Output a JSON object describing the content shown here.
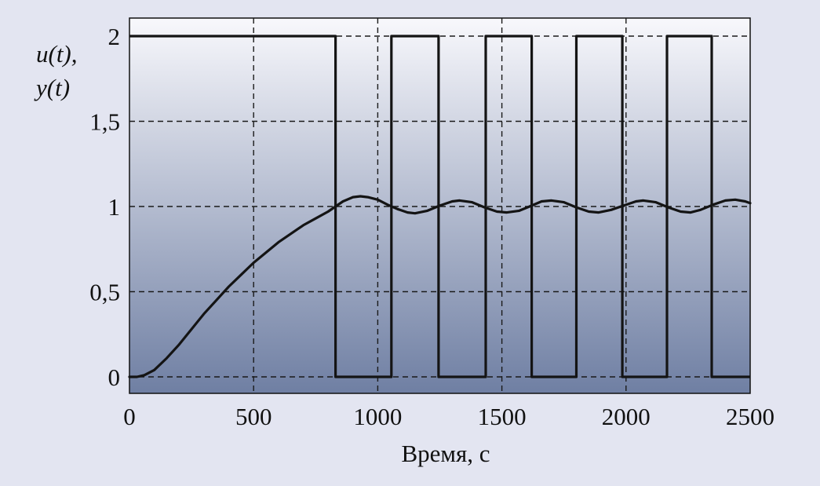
{
  "chart_data": {
    "type": "line",
    "title": "",
    "xlabel": "Время, с",
    "ylabel": {
      "line1": "u(t),",
      "line2": "y(t)"
    },
    "xlim": [
      0,
      2500
    ],
    "ylim": [
      0,
      2
    ],
    "xticks": [
      {
        "value": 0,
        "label": "0"
      },
      {
        "value": 500,
        "label": "500"
      },
      {
        "value": 1000,
        "label": "1000"
      },
      {
        "value": 1500,
        "label": "1500"
      },
      {
        "value": 2000,
        "label": "2000"
      },
      {
        "value": 2500,
        "label": "2500"
      }
    ],
    "yticks": [
      {
        "value": 0,
        "label": "0"
      },
      {
        "value": 0.5,
        "label": "0,5"
      },
      {
        "value": 1,
        "label": "1"
      },
      {
        "value": 1.5,
        "label": "1,5"
      },
      {
        "value": 2,
        "label": "2"
      }
    ],
    "grid": true,
    "colors": {
      "background": "#e3e5f1",
      "plot_top": "#f8f8fc",
      "plot_bottom": "#6f7fa3",
      "line": "#141414"
    },
    "series": [
      {
        "name": "u(t)",
        "x": [
          0,
          830,
          830,
          1055,
          1055,
          1245,
          1245,
          1435,
          1435,
          1620,
          1620,
          1800,
          1800,
          1985,
          1985,
          2165,
          2165,
          2345,
          2345,
          2500
        ],
        "y": [
          2,
          2,
          0,
          0,
          2,
          2,
          0,
          0,
          2,
          2,
          0,
          0,
          2,
          2,
          0,
          0,
          2,
          2,
          0,
          0
        ]
      },
      {
        "name": "y(t)",
        "x": [
          0,
          30,
          60,
          100,
          150,
          200,
          250,
          300,
          350,
          400,
          450,
          500,
          550,
          600,
          650,
          700,
          750,
          800,
          830,
          860,
          900,
          930,
          960,
          1000,
          1040,
          1080,
          1120,
          1150,
          1200,
          1250,
          1300,
          1330,
          1380,
          1430,
          1480,
          1520,
          1570,
          1620,
          1660,
          1700,
          1750,
          1800,
          1850,
          1890,
          1940,
          1990,
          2040,
          2070,
          2120,
          2170,
          2220,
          2260,
          2300,
          2350,
          2400,
          2440,
          2480,
          2500
        ],
        "y": [
          0,
          0,
          0.01,
          0.04,
          0.11,
          0.19,
          0.28,
          0.37,
          0.45,
          0.53,
          0.6,
          0.67,
          0.73,
          0.79,
          0.84,
          0.89,
          0.93,
          0.97,
          1.0,
          1.03,
          1.055,
          1.06,
          1.055,
          1.04,
          1.01,
          0.985,
          0.965,
          0.96,
          0.975,
          1.005,
          1.03,
          1.035,
          1.025,
          0.995,
          0.97,
          0.965,
          0.975,
          1.005,
          1.03,
          1.035,
          1.025,
          0.995,
          0.97,
          0.965,
          0.98,
          1.005,
          1.03,
          1.035,
          1.025,
          0.995,
          0.97,
          0.965,
          0.98,
          1.01,
          1.035,
          1.04,
          1.03,
          1.02
        ]
      }
    ]
  }
}
